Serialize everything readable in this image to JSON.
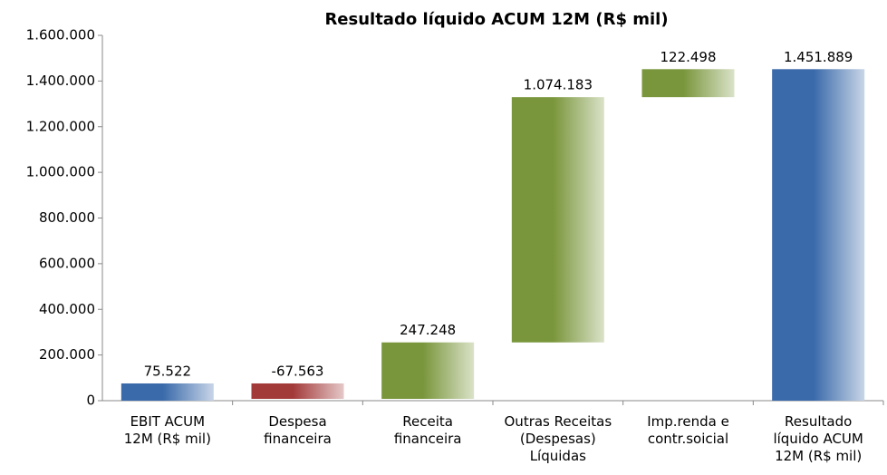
{
  "chart_data": {
    "type": "waterfall",
    "title": "Resultado líquido ACUM 12M (R$ mil)",
    "categories": [
      "EBIT ACUM\n12M (R$ mil)",
      "Despesa\nfinanceira",
      "Receita\nfinanceira",
      "Outras Receitas\n(Despesas)\nLíquidas",
      "Imp.renda e\ncontr.soicial",
      "Resultado\nlíquido ACUM\n12M (R$ mil)"
    ],
    "values": [
      75522,
      -67563,
      247248,
      1074183,
      122498,
      1451889
    ],
    "value_labels": [
      "75.522",
      "-67.563",
      "247.248",
      "1.074.183",
      "122.498",
      "1.451.889"
    ],
    "colors": [
      "#3a6aaa",
      "#a33a3a",
      "#7a963c",
      "#7a963c",
      "#7a963c",
      "#3a6aaa"
    ],
    "ylim": [
      0,
      1600000
    ],
    "yticks": [
      0,
      {
        "value": 200000,
        "label": "200.000"
      },
      {
        "value": 400000,
        "label": "400.000"
      },
      {
        "value": 600000,
        "label": "600.000"
      },
      {
        "value": 800000,
        "label": "800.000"
      },
      {
        "value": 1000000,
        "label": "1.000.000"
      },
      {
        "value": 1200000,
        "label": "1.200.000"
      },
      {
        "value": 1400000,
        "label": "1.400.000"
      },
      {
        "value": 1600000,
        "label": "1.600.000"
      }
    ]
  }
}
